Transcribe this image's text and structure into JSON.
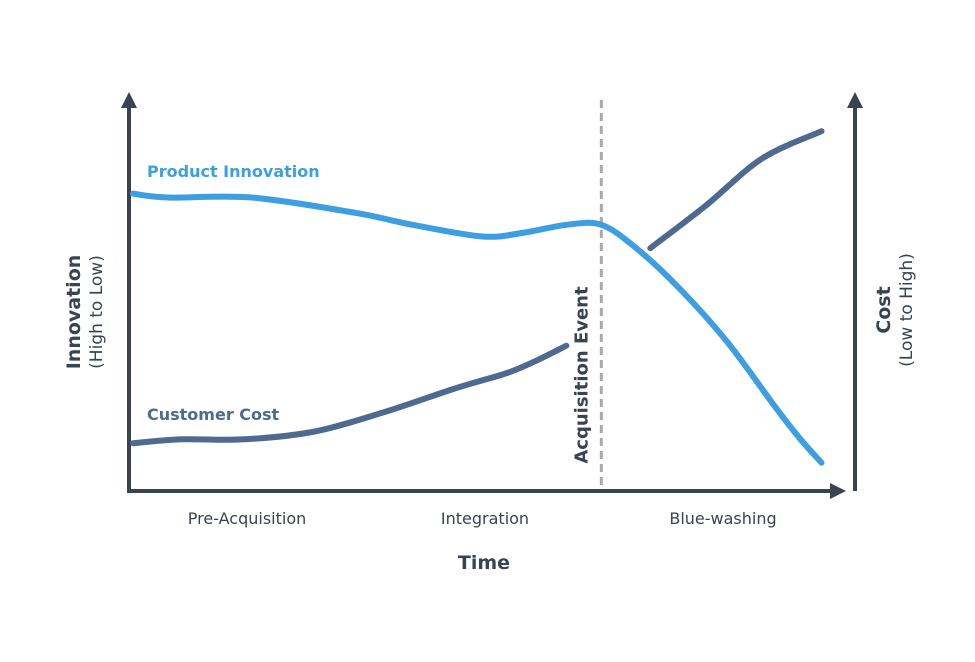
{
  "chart_data": {
    "type": "line",
    "title": "",
    "xlabel": "Time",
    "ylabel_left": {
      "title": "Innovation",
      "subtitle": "(High to Low)"
    },
    "ylabel_right": {
      "title": "Cost",
      "subtitle": "(Low to High)"
    },
    "phases": [
      "Pre-Acquisition",
      "Integration",
      "Blue-washing"
    ],
    "event": {
      "label": "Acquisition Event",
      "x": 0.67
    },
    "x_range": [
      0,
      1
    ],
    "y_range": [
      0,
      1
    ],
    "grid": false,
    "series": [
      {
        "name": "Product Innovation",
        "color": "#3d9ee0",
        "x": [
          0,
          0.05,
          0.17,
          0.32,
          0.4,
          0.5,
          0.56,
          0.62,
          0.67,
          0.72,
          0.78,
          0.85,
          0.92,
          0.955,
          0.985
        ],
        "y": [
          0.76,
          0.75,
          0.75,
          0.71,
          0.68,
          0.65,
          0.66,
          0.68,
          0.68,
          0.62,
          0.52,
          0.38,
          0.21,
          0.13,
          0.07
        ]
      },
      {
        "name": "Customer Cost",
        "color": "#4f6a8f",
        "x": [
          0,
          0.07,
          0.16,
          0.26,
          0.36,
          0.46,
          0.535,
          0.575,
          0.62,
          0.66,
          0.74,
          0.82,
          0.9,
          0.985
        ],
        "y": [
          0.12,
          0.13,
          0.13,
          0.15,
          0.2,
          0.26,
          0.3,
          0.33,
          0.37,
          0.43,
          0.62,
          0.73,
          0.85,
          0.92
        ],
        "gap_x": [
          0.623,
          0.667
        ]
      }
    ]
  },
  "colors": {
    "axis": "#3a4350",
    "event_line": "#a9a9a9"
  }
}
